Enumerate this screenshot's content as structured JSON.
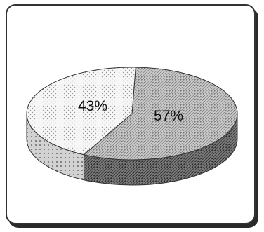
{
  "chart_data": {
    "type": "pie",
    "style": "3d",
    "title": "",
    "slices": [
      {
        "label": "57%",
        "value": 57,
        "pattern": "gray-hatch"
      },
      {
        "label": "43%",
        "value": 43,
        "pattern": "light-dots"
      }
    ],
    "legend": "none"
  }
}
